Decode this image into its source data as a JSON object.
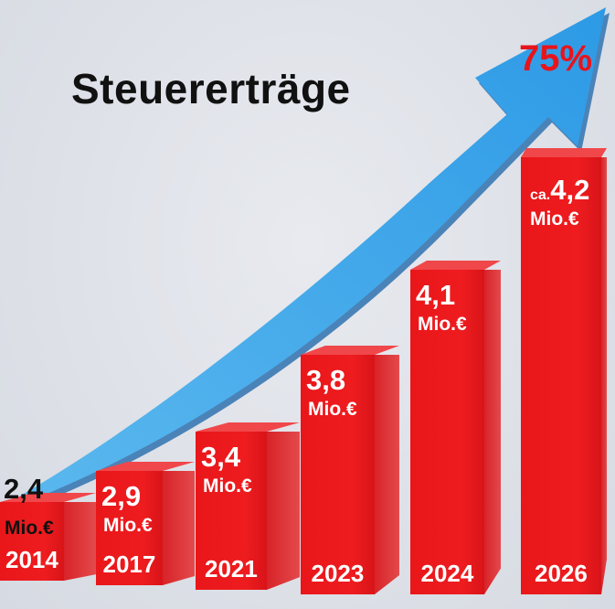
{
  "chart_data": {
    "type": "bar",
    "title": "Steuererträge",
    "categories": [
      "2014",
      "2017",
      "2021",
      "2023",
      "2024",
      "2026"
    ],
    "values": [
      2.4,
      2.9,
      3.4,
      3.8,
      4.1,
      4.2
    ],
    "labels": [
      "2,4",
      "2,9",
      "3,4",
      "3,8",
      "4,1",
      "4,2"
    ],
    "prefixes": [
      "",
      "",
      "",
      "",
      "",
      "ca."
    ],
    "unit": "Mio.€",
    "annotation": "75%",
    "colors": {
      "bar": "#e8141b",
      "arrow": "#2ea3ea",
      "annotation": "#e8141b"
    }
  }
}
